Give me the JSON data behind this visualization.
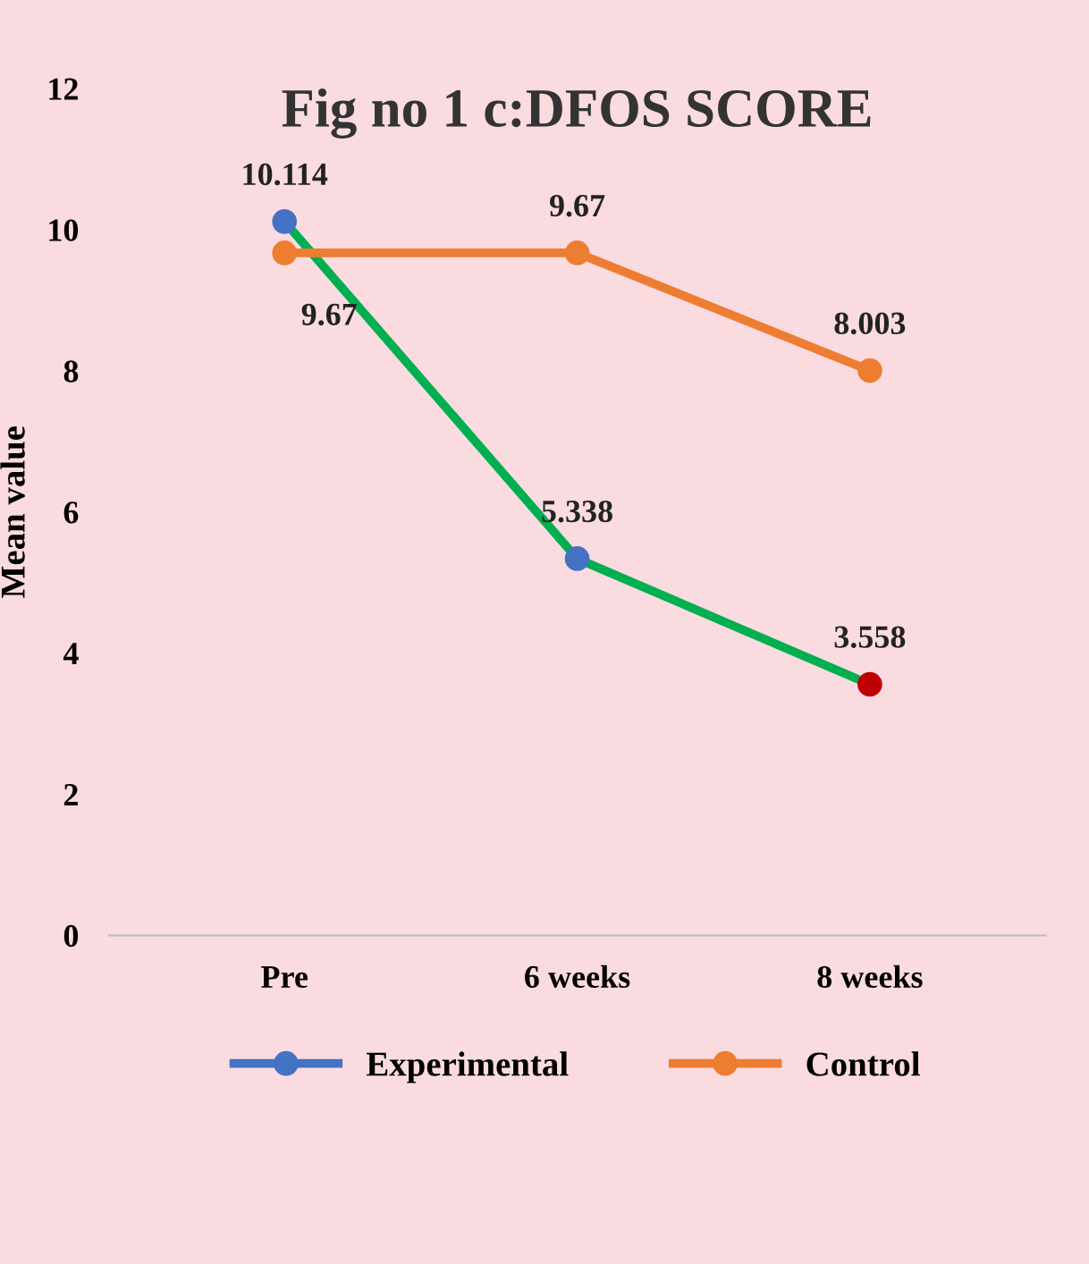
{
  "chart_data": {
    "type": "line",
    "title": "Fig no 1 c:DFOS SCORE",
    "ylabel": "Mean value",
    "categories": [
      "Pre",
      "6 weeks",
      "8 weeks"
    ],
    "series": [
      {
        "name": "Experimental",
        "color": "#00b050",
        "colors": [
          "#4472c4",
          "#4472c4",
          "#c00000"
        ],
        "values": [
          10.114,
          5.338,
          3.558
        ]
      },
      {
        "name": "Control",
        "color": "#ed7d31",
        "colors": [
          "#ed7d31",
          "#ed7d31",
          "#ed7d31"
        ],
        "values": [
          9.67,
          9.67,
          8.003
        ]
      }
    ],
    "ylim": [
      0,
      12
    ],
    "yticks": [
      0,
      2,
      4,
      6,
      8,
      10,
      12
    ],
    "grid": false,
    "legend": "bottom",
    "marker": "circle",
    "line_style": "solid",
    "data_labels": true
  }
}
